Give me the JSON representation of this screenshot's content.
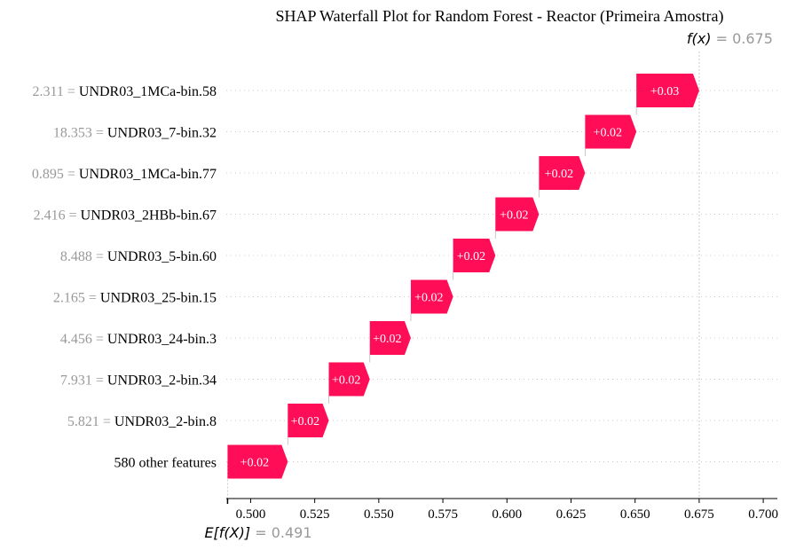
{
  "chart_data": {
    "type": "waterfall",
    "title": "SHAP Waterfall Plot for Random Forest - Reactor (Primeira Amostra)",
    "features": [
      {
        "value": "2.311",
        "name": "UNDR03_1MCa-bin.58",
        "label": "+0.03",
        "start": 0.6505,
        "shap": 0.0245
      },
      {
        "value": "18.353",
        "name": "UNDR03_7-bin.32",
        "label": "+0.02",
        "start": 0.6305,
        "shap": 0.02
      },
      {
        "value": "0.895",
        "name": "UNDR03_1MCa-bin.77",
        "label": "+0.02",
        "start": 0.6125,
        "shap": 0.018
      },
      {
        "value": "2.416",
        "name": "UNDR03_2HBb-bin.67",
        "label": "+0.02",
        "start": 0.5955,
        "shap": 0.017
      },
      {
        "value": "8.488",
        "name": "UNDR03_5-bin.60",
        "label": "+0.02",
        "start": 0.579,
        "shap": 0.0165
      },
      {
        "value": "2.165",
        "name": "UNDR03_25-bin.15",
        "label": "+0.02",
        "start": 0.5625,
        "shap": 0.0165
      },
      {
        "value": "4.456",
        "name": "UNDR03_24-bin.3",
        "label": "+0.02",
        "start": 0.5465,
        "shap": 0.016
      },
      {
        "value": "7.931",
        "name": "UNDR03_2-bin.34",
        "label": "+0.02",
        "start": 0.5305,
        "shap": 0.016
      },
      {
        "value": "5.821",
        "name": "UNDR03_2-bin.8",
        "label": "+0.02",
        "start": 0.5145,
        "shap": 0.016
      },
      {
        "value": "",
        "name": "580 other features",
        "label": "+0.02",
        "start": 0.491,
        "shap": 0.0235
      }
    ],
    "xticks": [
      "0.500",
      "0.525",
      "0.550",
      "0.575",
      "0.600",
      "0.625",
      "0.650",
      "0.675",
      "0.700"
    ],
    "xlim": [
      0.4905,
      0.7055
    ],
    "fx": {
      "label": "f(x)",
      "value": "0.675",
      "x": 0.675
    },
    "efx": {
      "label": "E[f(X)]",
      "value": "0.491",
      "x": 0.491
    },
    "colors": {
      "positive": "#ff0d57",
      "grid": "#cccccc"
    }
  }
}
